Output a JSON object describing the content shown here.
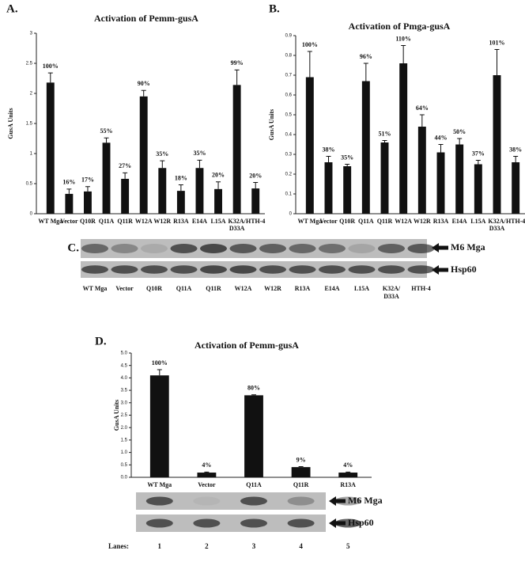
{
  "chart_data": [
    {
      "type": "bar",
      "panel": "A.",
      "title": "Activation of Pemm-gusA",
      "ylabel": "GusA Units",
      "categories": [
        "WT Mga",
        "Vector",
        "Q10R",
        "Q11A",
        "Q11R",
        "W12A",
        "W12R",
        "R13A",
        "E14A",
        "L15A",
        "K32A/D33A",
        "HTH-4"
      ],
      "values": [
        2.18,
        0.33,
        0.37,
        1.18,
        0.58,
        1.95,
        0.76,
        0.38,
        0.76,
        0.41,
        2.14,
        0.42
      ],
      "errors": [
        0.16,
        0.08,
        0.08,
        0.08,
        0.1,
        0.1,
        0.12,
        0.1,
        0.13,
        0.12,
        0.25,
        0.1
      ],
      "annotations": [
        "100%",
        "16%",
        "17%",
        "55%",
        "27%",
        "90%",
        "35%",
        "18%",
        "35%",
        "20%",
        "99%",
        "20%"
      ],
      "color": "#111111",
      "ylim": [
        0,
        3
      ],
      "yticks": [
        0,
        0.5,
        1,
        1.5,
        2,
        2.5,
        3
      ]
    },
    {
      "type": "bar",
      "panel": "B.",
      "title": "Activation of Pmga-gusA",
      "ylabel": "GusA Units",
      "categories": [
        "WT Mga",
        "Vector",
        "Q10R",
        "Q11A",
        "Q11R",
        "W12A",
        "W12R",
        "R13A",
        "E14A",
        "L15A",
        "K32A/D33A",
        "HTH-4"
      ],
      "values": [
        0.69,
        0.26,
        0.24,
        0.67,
        0.36,
        0.76,
        0.44,
        0.31,
        0.35,
        0.25,
        0.7,
        0.26
      ],
      "errors": [
        0.13,
        0.03,
        0.01,
        0.09,
        0.01,
        0.09,
        0.06,
        0.04,
        0.03,
        0.02,
        0.13,
        0.03
      ],
      "annotations": [
        "100%",
        "38%",
        "35%",
        "96%",
        "51%",
        "110%",
        "64%",
        "44%",
        "50%",
        "37%",
        "101%",
        "38%"
      ],
      "color": "#111111",
      "ylim": [
        0,
        0.9
      ],
      "yticks": [
        0,
        0.1,
        0.2,
        0.3,
        0.4,
        0.5,
        0.6,
        0.7,
        0.8,
        0.9
      ]
    },
    {
      "type": "bar",
      "panel": "D.",
      "title": "Activation of Pemm-gusA",
      "ylabel": "GusA Units",
      "categories": [
        "WT Mga",
        "Vector",
        "Q11A",
        "Q11R",
        "R13A"
      ],
      "values": [
        4.1,
        0.19,
        3.3,
        0.41,
        0.19
      ],
      "errors": [
        0.23,
        0.02,
        0.02,
        0.02,
        0.02
      ],
      "annotations": [
        "100%",
        "4%",
        "80%",
        "9%",
        "4%"
      ],
      "color": "#111111",
      "ylim": [
        0,
        5
      ],
      "yticks": [
        {
          "value": 0,
          "label": "0.0"
        },
        0.5,
        {
          "value": 1,
          "label": "1.0"
        },
        1.5,
        {
          "value": 2,
          "label": "2.0"
        },
        2.5,
        {
          "value": 3,
          "label": "3.0"
        },
        3.5,
        {
          "value": 4,
          "label": "4.0"
        },
        4.5,
        {
          "value": 5,
          "label": "5.0"
        }
      ]
    }
  ],
  "blots": [
    {
      "panel": "C.",
      "rows": [
        "M6 Mga",
        "Hsp60"
      ],
      "lanes": [
        "WT Mga",
        "Vector",
        "Q10R",
        "Q11A",
        "Q11R",
        "W12A",
        "W12R",
        "R13A",
        "E14A",
        "L15A",
        "K32A/D33A",
        "HTH-4"
      ]
    },
    {
      "rows": [
        "M6 Mga",
        "Hsp60"
      ],
      "lanes_title": "Lanes:",
      "lanes": [
        "1",
        "2",
        "3",
        "4",
        "5"
      ]
    }
  ]
}
